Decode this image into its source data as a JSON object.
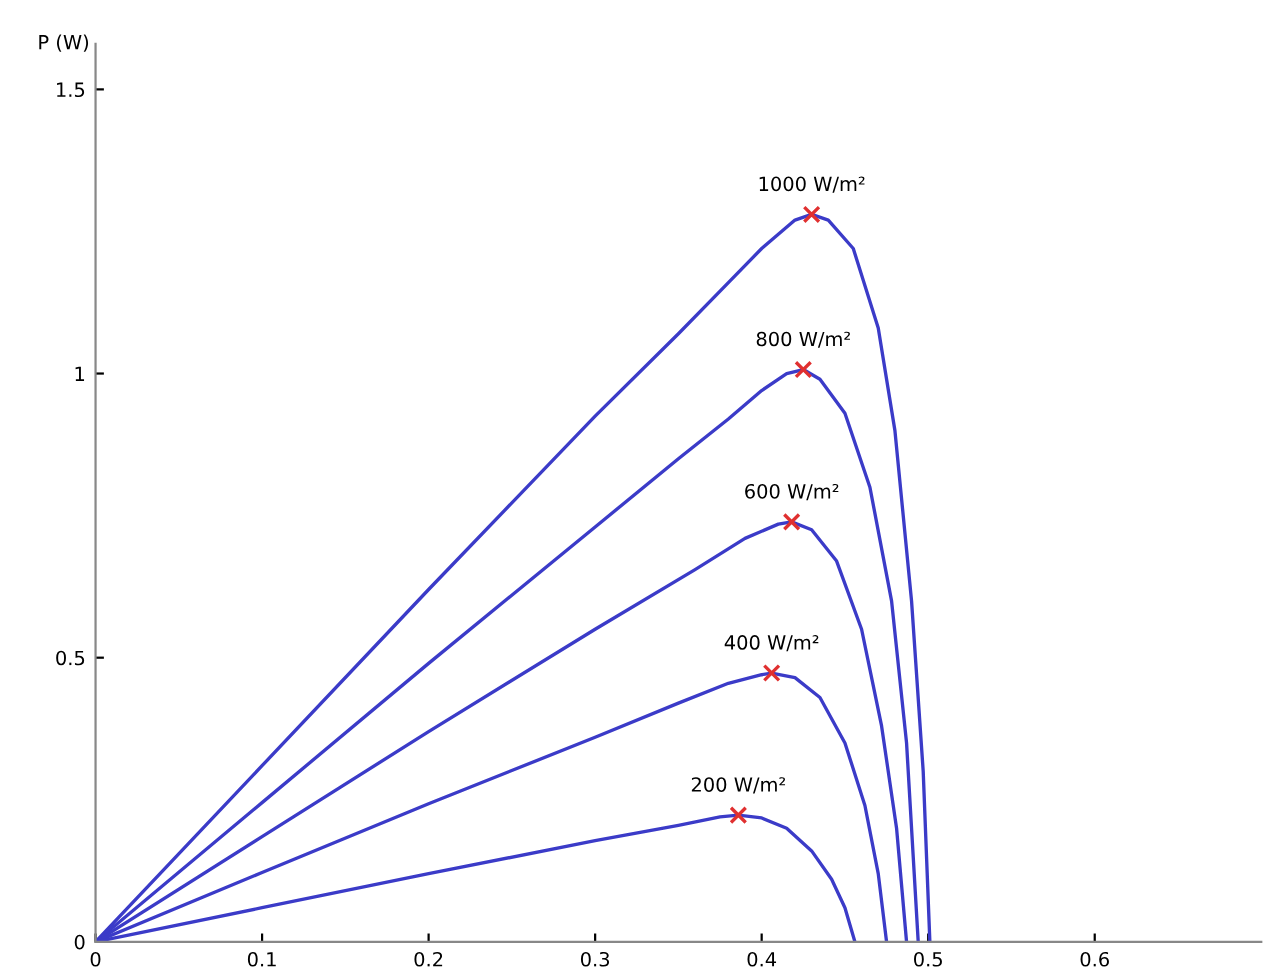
{
  "chart_data": {
    "type": "line",
    "ylabel": "P (W)",
    "xlim": [
      0,
      0.7
    ],
    "ylim": [
      0,
      1.58
    ],
    "xticks": [
      0,
      0.1,
      0.2,
      0.3,
      0.4,
      0.5,
      0.6
    ],
    "yticks": [
      0,
      0.5,
      1,
      1.5
    ],
    "grid": false,
    "marker": "none",
    "line_style": "solid",
    "series": [
      {
        "color": "#3b3bc8",
        "x": [
          0,
          0.1,
          0.2,
          0.3,
          0.35,
          0.38,
          0.4,
          0.42,
          0.43,
          0.44,
          0.455,
          0.47,
          0.48,
          0.49,
          0.497,
          0.501
        ],
        "values": [
          0,
          0.31,
          0.62,
          0.925,
          1.07,
          1.16,
          1.22,
          1.27,
          1.28,
          1.27,
          1.22,
          1.08,
          0.9,
          0.6,
          0.3,
          0
        ]
      },
      {
        "color": "#3b3bc8",
        "x": [
          0,
          0.1,
          0.2,
          0.3,
          0.35,
          0.38,
          0.4,
          0.415,
          0.425,
          0.435,
          0.45,
          0.465,
          0.478,
          0.487,
          0.494
        ],
        "values": [
          0,
          0.245,
          0.49,
          0.73,
          0.85,
          0.92,
          0.97,
          1.0,
          1.007,
          0.99,
          0.93,
          0.8,
          0.6,
          0.35,
          0
        ]
      },
      {
        "color": "#3b3bc8",
        "x": [
          0,
          0.1,
          0.2,
          0.3,
          0.36,
          0.39,
          0.41,
          0.418,
          0.43,
          0.445,
          0.46,
          0.472,
          0.481,
          0.487
        ],
        "values": [
          0,
          0.185,
          0.37,
          0.55,
          0.655,
          0.71,
          0.735,
          0.739,
          0.725,
          0.67,
          0.55,
          0.38,
          0.2,
          0
        ]
      },
      {
        "color": "#3b3bc8",
        "x": [
          0,
          0.1,
          0.2,
          0.3,
          0.35,
          0.38,
          0.4,
          0.406,
          0.42,
          0.435,
          0.45,
          0.462,
          0.47,
          0.475
        ],
        "values": [
          0,
          0.122,
          0.243,
          0.36,
          0.42,
          0.455,
          0.47,
          0.473,
          0.465,
          0.43,
          0.35,
          0.24,
          0.12,
          0
        ]
      },
      {
        "color": "#3b3bc8",
        "x": [
          0,
          0.1,
          0.2,
          0.3,
          0.35,
          0.375,
          0.386,
          0.4,
          0.415,
          0.43,
          0.442,
          0.45,
          0.456
        ],
        "values": [
          0,
          0.06,
          0.12,
          0.178,
          0.205,
          0.22,
          0.223,
          0.218,
          0.2,
          0.16,
          0.11,
          0.06,
          0
        ]
      },
      {
        "type": "scatter",
        "marker": "cross",
        "color": "#e03030",
        "x": [
          0.43,
          0.425,
          0.418,
          0.406,
          0.386
        ],
        "values": [
          1.28,
          1.007,
          0.739,
          0.473,
          0.223
        ]
      }
    ],
    "annotations": [
      {
        "text": "1000 W/m²",
        "x": 0.43,
        "y": 1.28
      },
      {
        "text": "800 W/m²",
        "x": 0.425,
        "y": 1.007
      },
      {
        "text": "600 W/m²",
        "x": 0.418,
        "y": 0.739
      },
      {
        "text": "400 W/m²",
        "x": 0.406,
        "y": 0.473
      },
      {
        "text": "200 W/m²",
        "x": 0.386,
        "y": 0.223
      }
    ]
  }
}
